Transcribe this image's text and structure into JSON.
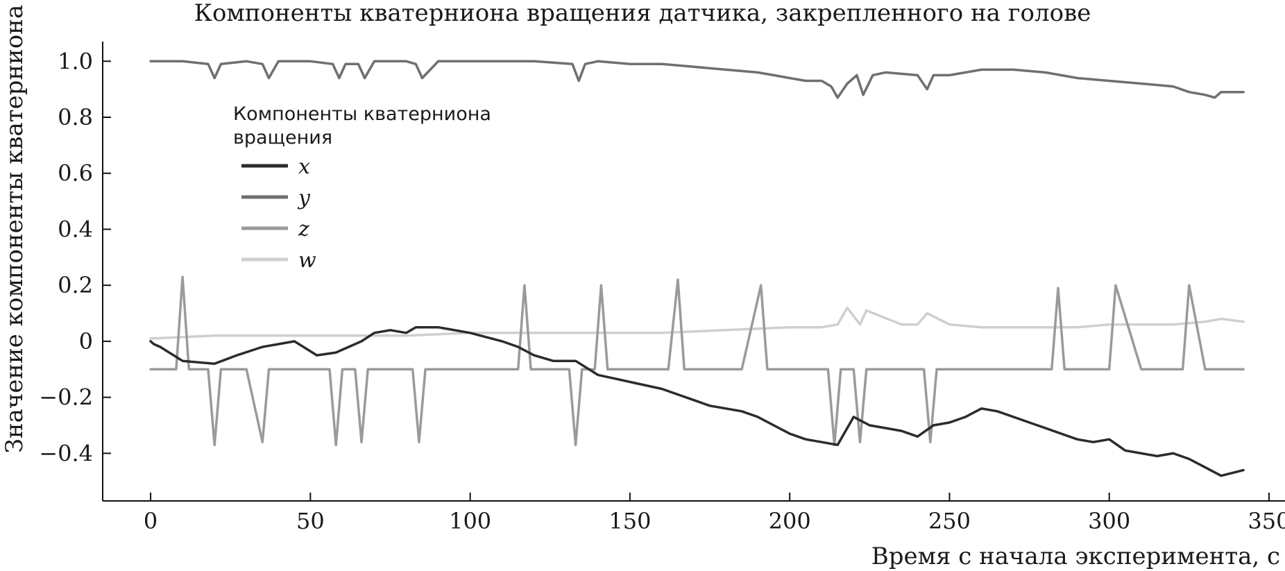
{
  "chart_data": {
    "type": "line",
    "title": "Компоненты кватерниона вращения датчика, закрепленного на голове",
    "xlabel": "Время с начала эксперимента, с",
    "ylabel": "Значение компоненты кватерниона",
    "xlim": [
      -15,
      355
    ],
    "ylim": [
      -0.57,
      1.07
    ],
    "xticks": [
      0,
      50,
      100,
      150,
      200,
      250,
      300,
      350
    ],
    "xtick_labels": [
      "0",
      "50",
      "100",
      "150",
      "200",
      "250",
      "300",
      "350"
    ],
    "yticks": [
      -0.4,
      -0.2,
      0,
      0.2,
      0.4,
      0.6,
      0.8,
      1.0
    ],
    "ytick_labels": [
      "−0.4",
      "−0.2",
      "0",
      "0.2",
      "0.4",
      "0.6",
      "0.8",
      "1.0"
    ],
    "grid": false,
    "legend": {
      "title": "Компоненты кватерниона вращения",
      "title_lines": [
        "Компоненты кватерниона",
        "вращения"
      ],
      "placement": "upper-left"
    },
    "series": [
      {
        "name": "x",
        "color": "#2b2b2b",
        "x": [
          0,
          1,
          3,
          10,
          20,
          27,
          35,
          40,
          45,
          52,
          58,
          62,
          66,
          70,
          75,
          80,
          83,
          90,
          100,
          110,
          115,
          120,
          126,
          133,
          140,
          144,
          148,
          152,
          156,
          160,
          165,
          170,
          175,
          180,
          185,
          190,
          195,
          200,
          205,
          210,
          215,
          220,
          225,
          230,
          235,
          240,
          245,
          250,
          255,
          260,
          265,
          270,
          275,
          280,
          285,
          290,
          295,
          300,
          305,
          310,
          315,
          320,
          325,
          330,
          335,
          342
        ],
        "values": [
          0.0,
          -0.01,
          -0.02,
          -0.07,
          -0.08,
          -0.05,
          -0.02,
          -0.01,
          0.0,
          -0.05,
          -0.04,
          -0.02,
          0.0,
          0.03,
          0.04,
          0.03,
          0.05,
          0.05,
          0.03,
          0.0,
          -0.02,
          -0.05,
          -0.07,
          -0.07,
          -0.12,
          -0.13,
          -0.14,
          -0.15,
          -0.16,
          -0.17,
          -0.19,
          -0.21,
          -0.23,
          -0.24,
          -0.25,
          -0.27,
          -0.3,
          -0.33,
          -0.35,
          -0.36,
          -0.37,
          -0.27,
          -0.3,
          -0.31,
          -0.32,
          -0.34,
          -0.3,
          -0.29,
          -0.27,
          -0.24,
          -0.25,
          -0.27,
          -0.29,
          -0.31,
          -0.33,
          -0.35,
          -0.36,
          -0.35,
          -0.39,
          -0.4,
          -0.41,
          -0.4,
          -0.42,
          -0.45,
          -0.48,
          -0.46
        ]
      },
      {
        "name": "y",
        "color": "#6f6f6f",
        "x": [
          0,
          10,
          18,
          20,
          22,
          30,
          35,
          37,
          40,
          50,
          57,
          59,
          61,
          65,
          67,
          70,
          80,
          83,
          85,
          90,
          100,
          110,
          120,
          132,
          134,
          136,
          140,
          150,
          160,
          170,
          180,
          190,
          195,
          200,
          205,
          210,
          213,
          215,
          218,
          221,
          223,
          226,
          230,
          240,
          243,
          245,
          250,
          255,
          260,
          270,
          280,
          290,
          300,
          310,
          320,
          325,
          330,
          333,
          335,
          342
        ],
        "values": [
          1.0,
          1.0,
          0.99,
          0.94,
          0.99,
          1.0,
          0.99,
          0.94,
          1.0,
          1.0,
          0.99,
          0.94,
          0.99,
          0.99,
          0.94,
          1.0,
          1.0,
          0.99,
          0.94,
          1.0,
          1.0,
          1.0,
          1.0,
          0.99,
          0.93,
          0.99,
          1.0,
          0.99,
          0.99,
          0.98,
          0.97,
          0.96,
          0.95,
          0.94,
          0.93,
          0.93,
          0.91,
          0.87,
          0.92,
          0.95,
          0.88,
          0.95,
          0.96,
          0.95,
          0.9,
          0.95,
          0.95,
          0.96,
          0.97,
          0.97,
          0.96,
          0.94,
          0.93,
          0.92,
          0.91,
          0.89,
          0.88,
          0.87,
          0.89,
          0.89
        ]
      },
      {
        "name": "z",
        "color": "#9a9a9a",
        "x": [
          0,
          8,
          10,
          12,
          18,
          20,
          22,
          30,
          35,
          37,
          40,
          50,
          56,
          58,
          60,
          64,
          66,
          68,
          75,
          82,
          84,
          86,
          95,
          105,
          115,
          117,
          119,
          125,
          131,
          133,
          135,
          139,
          141,
          143,
          150,
          157,
          159,
          162,
          165,
          167,
          175,
          185,
          191,
          193,
          196,
          205,
          212,
          214,
          216,
          220,
          222,
          224,
          232,
          237,
          242,
          244,
          246,
          255,
          265,
          275,
          282,
          284,
          286,
          295,
          300,
          302,
          310,
          320,
          323,
          325,
          330,
          342
        ],
        "values": [
          -0.1,
          -0.1,
          0.23,
          -0.1,
          -0.1,
          -0.37,
          -0.1,
          -0.1,
          -0.36,
          -0.1,
          -0.1,
          -0.1,
          -0.1,
          -0.37,
          -0.1,
          -0.1,
          -0.36,
          -0.1,
          -0.1,
          -0.1,
          -0.36,
          -0.1,
          -0.1,
          -0.1,
          -0.1,
          0.2,
          -0.1,
          -0.1,
          -0.1,
          -0.37,
          -0.1,
          -0.1,
          0.2,
          -0.1,
          -0.1,
          -0.1,
          -0.1,
          -0.1,
          0.22,
          -0.1,
          -0.1,
          -0.1,
          0.2,
          -0.1,
          -0.1,
          -0.1,
          -0.1,
          -0.37,
          -0.1,
          -0.1,
          -0.36,
          -0.1,
          -0.1,
          -0.1,
          -0.1,
          -0.36,
          -0.1,
          -0.1,
          -0.1,
          -0.1,
          -0.1,
          0.19,
          -0.1,
          -0.1,
          -0.1,
          0.2,
          -0.1,
          -0.1,
          -0.1,
          0.2,
          -0.1,
          -0.1
        ]
      },
      {
        "name": "w",
        "color": "#cfcfcf",
        "x": [
          0,
          20,
          40,
          60,
          80,
          100,
          120,
          140,
          160,
          180,
          200,
          210,
          215,
          218,
          222,
          224,
          235,
          240,
          243,
          250,
          260,
          270,
          280,
          290,
          300,
          310,
          320,
          330,
          335,
          342
        ],
        "values": [
          0.01,
          0.02,
          0.02,
          0.02,
          0.02,
          0.03,
          0.03,
          0.03,
          0.03,
          0.04,
          0.05,
          0.05,
          0.06,
          0.12,
          0.06,
          0.11,
          0.06,
          0.06,
          0.1,
          0.06,
          0.05,
          0.05,
          0.05,
          0.05,
          0.06,
          0.06,
          0.06,
          0.07,
          0.08,
          0.07
        ]
      }
    ]
  }
}
